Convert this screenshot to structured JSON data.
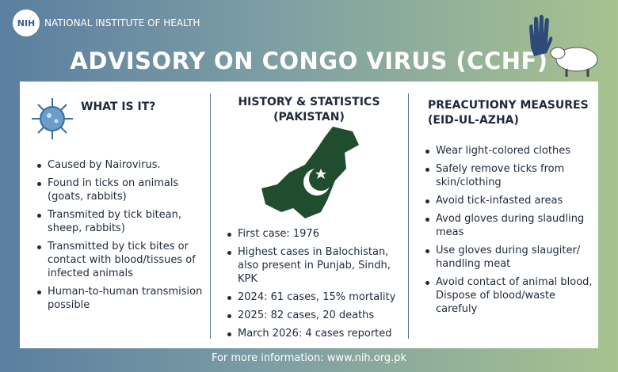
{
  "header": {
    "logo": "NIH",
    "org": "NATIONAL INSTITUTE OF HEALTH",
    "title": "ADVISORY ON CONGO VIRUS (CCHF)"
  },
  "columns": [
    {
      "title": "WHAT IS IT?",
      "items": [
        "Caused by Nairovirus.",
        "Found in ticks on animals (goats, rabbits)",
        "Transmited by tick bitean, sheep, rabbits)",
        "Transmitted by tick bites or contact with blood/tissues of infected animals",
        "Human-to-human transmision possible"
      ]
    },
    {
      "title": "HISTORY & STATISTICS (PAKISTAN)",
      "items": [
        "First case: 1976",
        "Highest cases in Balochistan, also present in Punjab, Sindh, KPK",
        "2024: 61 cases, 15% mortality",
        "2025: 82 cases, 20 deaths",
        "March 2026: 4 cases reported"
      ]
    },
    {
      "title": "PREACUTIONY MEASURES (EID-UL-AZHA)",
      "items": [
        "Wear light-colored clothes",
        "Safely remove ticks from skin/clothing",
        "Avoid tick-infasted areas",
        "Avod gloves during slaudling meas",
        "Use gloves during slaugiter/ handling meat",
        "Avoid contact of animal blood, Dispose of blood/waste carefuly"
      ]
    }
  ],
  "footer": "For more information: www.nih.org.pk"
}
